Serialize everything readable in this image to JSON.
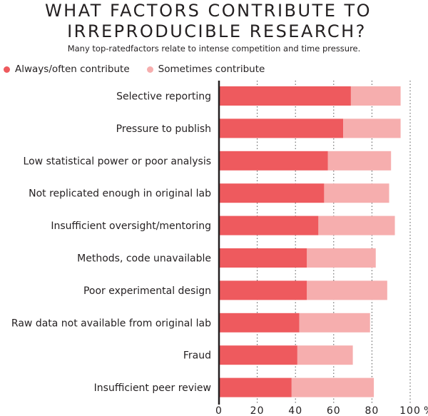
{
  "title_line1": "WHAT FACTORS CONTRIBUTE  TO",
  "title_line2": "IRREPRODUCIBLE RESEARCH?",
  "subtitle": "Many top-ratedfactors relate to intense competition and time pressure.",
  "colors": {
    "always": "#ee5a5e",
    "sometimes": "#f6aeae",
    "axis": "#231f20",
    "grid": "#555555"
  },
  "chart_data": {
    "type": "bar",
    "orientation": "horizontal",
    "stacked": true,
    "categories": [
      "Selective reporting",
      "Pressure to publish",
      "Low statistical power or poor analysis",
      "Not replicated enough in original lab",
      "Insufficient oversight/mentoring",
      "Methods, code unavailable",
      "Poor experimental design",
      "Raw data not available from original lab",
      "Fraud",
      "Insufficient peer review"
    ],
    "series": [
      {
        "name": "Always/often contribute",
        "values": [
          69,
          65,
          57,
          55,
          52,
          46,
          46,
          42,
          41,
          38
        ]
      },
      {
        "name": "Sometimes contribute",
        "values": [
          26,
          30,
          33,
          34,
          40,
          36,
          42,
          37,
          29,
          43
        ]
      }
    ],
    "xlim": [
      0,
      100
    ],
    "xticks": [
      "0",
      "20",
      "40",
      "60",
      "80",
      "100",
      "%"
    ],
    "grid": true,
    "legend_position": "top-left"
  }
}
